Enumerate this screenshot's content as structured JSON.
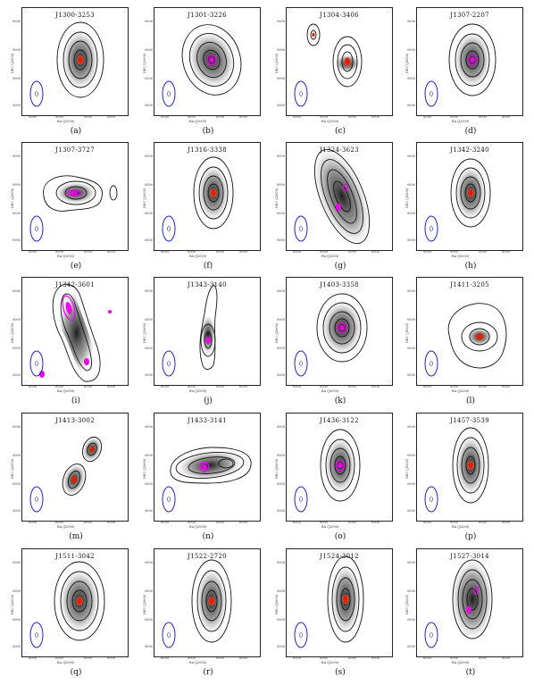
{
  "panels": [
    {
      "label": "(a)",
      "title": "J1300-3253",
      "tick": "0000"
    },
    {
      "label": "(b)",
      "title": "J1301-3226",
      "tick": "0000"
    },
    {
      "label": "(c)",
      "title": "J1304-3406",
      "tick": "0000"
    },
    {
      "label": "(d)",
      "title": "J1307-2207",
      "tick": "0000"
    },
    {
      "label": "(e)",
      "title": "J1307-3727",
      "tick": "0000"
    },
    {
      "label": "(f)",
      "title": "J1316-3338",
      "tick": "0000"
    },
    {
      "label": "(g)",
      "title": "J1324-3623",
      "tick": "0000"
    },
    {
      "label": "(h)",
      "title": "J1342-3240",
      "tick": "0000"
    },
    {
      "label": "(i)",
      "title": "J1342-3601",
      "tick": "0000"
    },
    {
      "label": "(j)",
      "title": "J1343-3140",
      "tick": "0000"
    },
    {
      "label": "(k)",
      "title": "J1403-3358",
      "tick": "0000"
    },
    {
      "label": "(l)",
      "title": "J1411-3205",
      "tick": "0000"
    },
    {
      "label": "(m)",
      "title": "J1413-3002",
      "tick": "0000"
    },
    {
      "label": "(n)",
      "title": "J1433-3141",
      "tick": "0000"
    },
    {
      "label": "(o)",
      "title": "J1436-3122",
      "tick": "0000"
    },
    {
      "label": "(p)",
      "title": "J1457-3539",
      "tick": "0000"
    },
    {
      "label": "(q)",
      "title": "J1511-3042",
      "tick": "0000"
    },
    {
      "label": "(r)",
      "title": "J1522-2720",
      "tick": "0000"
    },
    {
      "label": "(s)",
      "title": "J1524-3012",
      "tick": "0000"
    },
    {
      "label": "(t)",
      "title": "J1527-3014",
      "tick": "0000"
    }
  ],
  "axis": {
    "x_label": "RA (J2000)",
    "y_label": "DEC (J2000)"
  },
  "colors": {
    "contour": "#111111",
    "beam": "#2222cc",
    "core": "#dd2200",
    "magenta": "#ee00ee",
    "gray": "#555555"
  }
}
